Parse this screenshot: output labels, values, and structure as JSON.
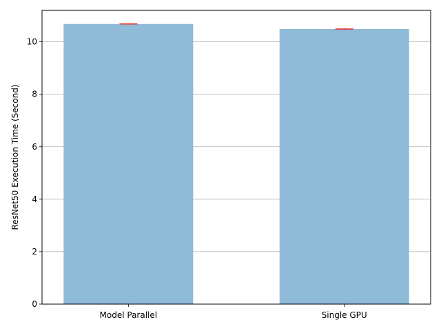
{
  "chart_data": {
    "type": "bar",
    "categories": [
      "Model Parallel",
      "Single GPU"
    ],
    "values": [
      10.68,
      10.49
    ],
    "error": [
      0.02,
      0.02
    ],
    "title": "",
    "xlabel": "",
    "ylabel": "ResNet50 Execution Time (Second)",
    "ylim": [
      0,
      11.2
    ],
    "yticks": [
      0,
      2,
      4,
      6,
      8,
      10
    ],
    "grid": "y",
    "colors": {
      "bar": "#8fbad8",
      "error": "#ff0000",
      "grid": "#b0b0b0",
      "axis": "#000000"
    }
  }
}
